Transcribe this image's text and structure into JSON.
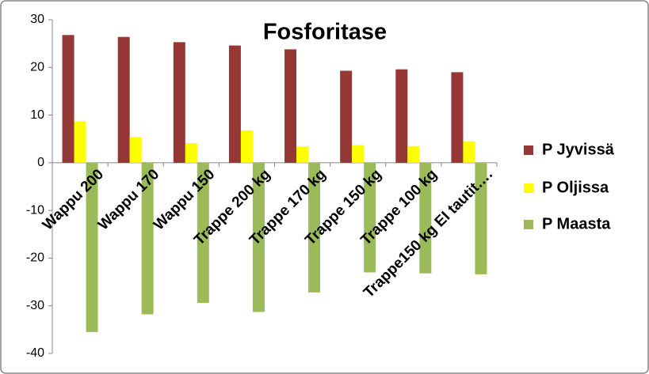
{
  "chart_data": {
    "type": "bar",
    "title": "Fosforitase",
    "categories": [
      "Wappu 200",
      "Wappu 170",
      "Wappu 150",
      "Trappe 200 kg",
      "Trappe 170 kg",
      "Trappe 150 kg",
      "Trappe 100 kg",
      "Trappe150 kg EI tautit…."
    ],
    "series": [
      {
        "name": "P Jyvissä",
        "color": "#953735",
        "values": [
          26.8,
          26.4,
          25.3,
          24.6,
          23.8,
          19.3,
          19.6,
          19.0
        ]
      },
      {
        "name": "P Oljissa",
        "color": "#ffff00",
        "values": [
          8.7,
          5.4,
          4.1,
          6.8,
          3.4,
          3.7,
          3.5,
          4.5
        ]
      },
      {
        "name": "P Maasta",
        "color": "#9bbb59",
        "values": [
          -35.5,
          -31.8,
          -29.4,
          -31.3,
          -27.2,
          -23.0,
          -23.2,
          -23.4
        ]
      }
    ],
    "ylim": [
      -40,
      30
    ],
    "yticks": [
      -40,
      -30,
      -20,
      -10,
      0,
      10,
      20,
      30
    ],
    "legend": "right"
  }
}
